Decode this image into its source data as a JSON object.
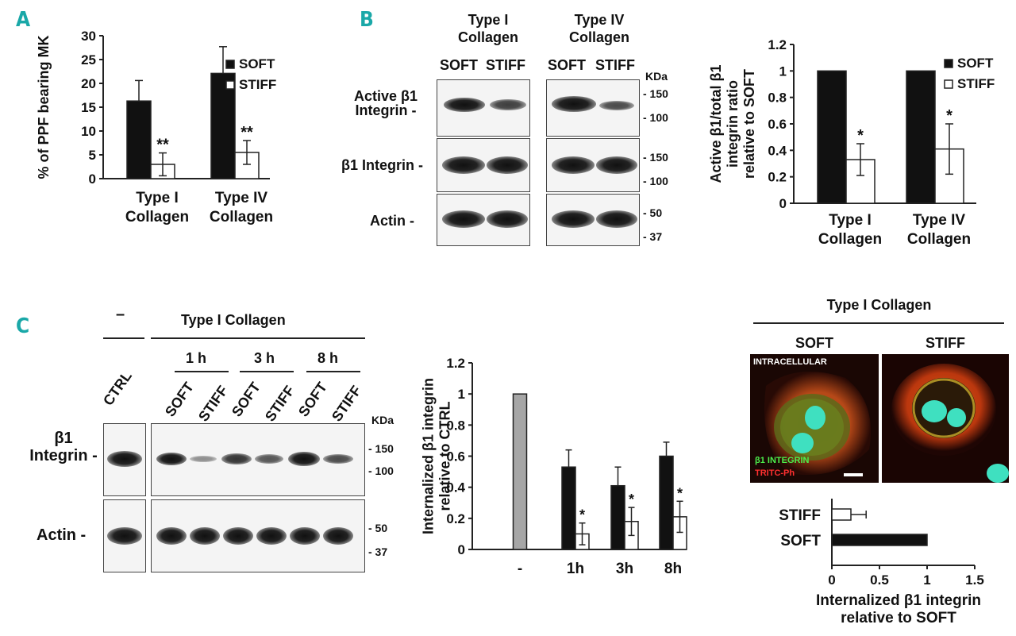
{
  "panels": {
    "a": "A",
    "b": "B",
    "c": "C"
  },
  "panelA": {
    "chart_data": {
      "type": "bar",
      "categories": [
        "Type I\nCollagen",
        "Type IV\nCollagen"
      ],
      "series": [
        {
          "name": "SOFT",
          "values": [
            16.3,
            22.1
          ],
          "errors": [
            4.3,
            5.6
          ],
          "color": "#111111"
        },
        {
          "name": "STIFF",
          "values": [
            3.0,
            5.5
          ],
          "errors": [
            2.4,
            2.5
          ],
          "color": "#ffffff"
        }
      ],
      "annotations": [
        "**",
        "**"
      ],
      "ylabel": "% of PPF bearing MK",
      "ylim": [
        0,
        30
      ],
      "yticks": [
        0,
        5,
        10,
        15,
        20,
        25,
        30
      ],
      "legend": "top-right"
    }
  },
  "panelB": {
    "blot": {
      "groups": [
        "Type I\nCollagen",
        "Type IV\nCollagen"
      ],
      "lanes": [
        "SOFT",
        "STIFF",
        "SOFT",
        "STIFF"
      ],
      "rows": [
        "Active β1\nIntegrin -",
        "β1 Integrin -",
        "Actin -"
      ],
      "kda_label": "KDa",
      "markers": [
        "- 150",
        "- 100",
        "- 150",
        "- 100",
        "- 50",
        "- 37"
      ]
    },
    "chart_data": {
      "type": "bar",
      "categories": [
        "Type I\nCollagen",
        "Type IV\nCollagen"
      ],
      "series": [
        {
          "name": "SOFT",
          "values": [
            1.0,
            1.0
          ],
          "errors": [
            0,
            0
          ],
          "color": "#111111"
        },
        {
          "name": "STIFF",
          "values": [
            0.33,
            0.41
          ],
          "errors": [
            0.12,
            0.19
          ],
          "color": "#ffffff"
        }
      ],
      "annotations": [
        "*",
        "*"
      ],
      "ylabel": "Active β1/total β1\nintegrin ratio\nrelative to SOFT",
      "ylim": [
        0,
        1.2
      ],
      "yticks": [
        0,
        0.2,
        0.4,
        0.6,
        0.8,
        1,
        1.2
      ],
      "legend": "top-right"
    }
  },
  "panelC": {
    "blot": {
      "dash": "–",
      "collagen_label": "Type I Collagen",
      "times": [
        "1 h",
        "3 h",
        "8 h"
      ],
      "lanes": [
        "CTRL",
        "SOFT",
        "STIFF",
        "SOFT",
        "STIFF",
        "SOFT",
        "STIFF"
      ],
      "rows": [
        "β1\nIntegrin -",
        "Actin -"
      ],
      "kda_label": "KDa",
      "markers": [
        "- 150",
        "- 100",
        "- 50",
        "- 37"
      ]
    },
    "chart_data": {
      "type": "bar",
      "categories": [
        "-",
        "1h",
        "3h",
        "8h"
      ],
      "series": [
        {
          "name": "CTRL",
          "values": [
            1.0,
            null,
            null,
            null
          ],
          "color": "#a6a6a6"
        },
        {
          "name": "SOFT",
          "values": [
            null,
            0.53,
            0.41,
            0.6
          ],
          "errors": [
            0,
            0.11,
            0.12,
            0.09
          ],
          "color": "#111111"
        },
        {
          "name": "STIFF",
          "values": [
            null,
            0.1,
            0.18,
            0.21
          ],
          "errors": [
            0,
            0.07,
            0.09,
            0.1
          ],
          "color": "#ffffff"
        }
      ],
      "annotations": [
        "*",
        "*",
        "*"
      ],
      "ylabel": "Internalized β1 integrin\nrelative to CTRL",
      "ylim": [
        0,
        1.2
      ],
      "yticks": [
        0,
        0.2,
        0.4,
        0.6,
        0.8,
        1,
        1.2
      ]
    },
    "micro": {
      "title": "Type I Collagen",
      "soft": "SOFT",
      "stiff": "STIFF",
      "intracellular": "INTRACELLULAR",
      "integrin": "β1 INTEGRIN",
      "tritc": "TRITC-Ph"
    },
    "hbar": {
      "chart_data": {
        "type": "bar",
        "orientation": "horizontal",
        "categories": [
          "STIFF",
          "SOFT"
        ],
        "values": [
          0.2,
          1.0
        ],
        "errors": [
          0.16,
          0
        ],
        "xlim": [
          0,
          1.5
        ],
        "xticks": [
          0,
          0.5,
          1,
          1.5
        ],
        "xlabel": "Internalized β1 integrin\nrelative to SOFT"
      }
    }
  }
}
